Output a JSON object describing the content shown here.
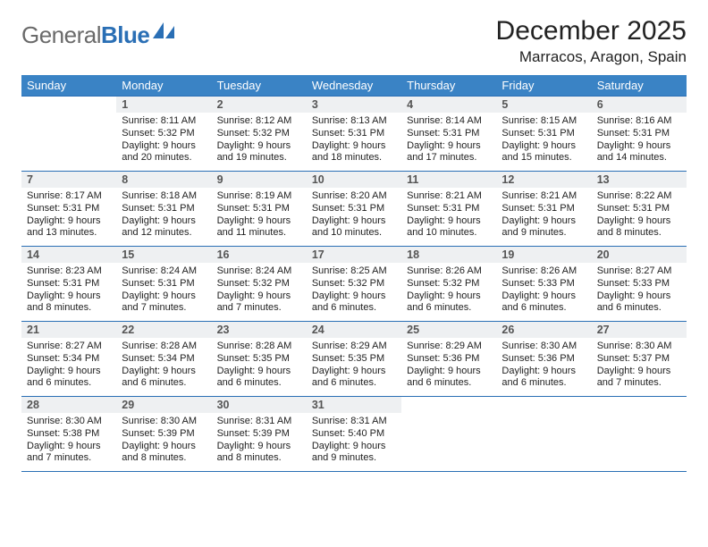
{
  "brand": {
    "word1": "General",
    "word2": "Blue",
    "accent_color": "#2a6fb5",
    "gray_color": "#6a6a6a"
  },
  "title": "December 2025",
  "location": "Marracos, Aragon, Spain",
  "header_bg": "#3a83c5",
  "rule_color": "#2a6fb5",
  "daynum_bg": "#eef0f2",
  "day_headers": [
    "Sunday",
    "Monday",
    "Tuesday",
    "Wednesday",
    "Thursday",
    "Friday",
    "Saturday"
  ],
  "weeks": [
    [
      null,
      {
        "n": "1",
        "sunrise": "8:11 AM",
        "sunset": "5:32 PM",
        "daylight": "9 hours and 20 minutes."
      },
      {
        "n": "2",
        "sunrise": "8:12 AM",
        "sunset": "5:32 PM",
        "daylight": "9 hours and 19 minutes."
      },
      {
        "n": "3",
        "sunrise": "8:13 AM",
        "sunset": "5:31 PM",
        "daylight": "9 hours and 18 minutes."
      },
      {
        "n": "4",
        "sunrise": "8:14 AM",
        "sunset": "5:31 PM",
        "daylight": "9 hours and 17 minutes."
      },
      {
        "n": "5",
        "sunrise": "8:15 AM",
        "sunset": "5:31 PM",
        "daylight": "9 hours and 15 minutes."
      },
      {
        "n": "6",
        "sunrise": "8:16 AM",
        "sunset": "5:31 PM",
        "daylight": "9 hours and 14 minutes."
      }
    ],
    [
      {
        "n": "7",
        "sunrise": "8:17 AM",
        "sunset": "5:31 PM",
        "daylight": "9 hours and 13 minutes."
      },
      {
        "n": "8",
        "sunrise": "8:18 AM",
        "sunset": "5:31 PM",
        "daylight": "9 hours and 12 minutes."
      },
      {
        "n": "9",
        "sunrise": "8:19 AM",
        "sunset": "5:31 PM",
        "daylight": "9 hours and 11 minutes."
      },
      {
        "n": "10",
        "sunrise": "8:20 AM",
        "sunset": "5:31 PM",
        "daylight": "9 hours and 10 minutes."
      },
      {
        "n": "11",
        "sunrise": "8:21 AM",
        "sunset": "5:31 PM",
        "daylight": "9 hours and 10 minutes."
      },
      {
        "n": "12",
        "sunrise": "8:21 AM",
        "sunset": "5:31 PM",
        "daylight": "9 hours and 9 minutes."
      },
      {
        "n": "13",
        "sunrise": "8:22 AM",
        "sunset": "5:31 PM",
        "daylight": "9 hours and 8 minutes."
      }
    ],
    [
      {
        "n": "14",
        "sunrise": "8:23 AM",
        "sunset": "5:31 PM",
        "daylight": "9 hours and 8 minutes."
      },
      {
        "n": "15",
        "sunrise": "8:24 AM",
        "sunset": "5:31 PM",
        "daylight": "9 hours and 7 minutes."
      },
      {
        "n": "16",
        "sunrise": "8:24 AM",
        "sunset": "5:32 PM",
        "daylight": "9 hours and 7 minutes."
      },
      {
        "n": "17",
        "sunrise": "8:25 AM",
        "sunset": "5:32 PM",
        "daylight": "9 hours and 6 minutes."
      },
      {
        "n": "18",
        "sunrise": "8:26 AM",
        "sunset": "5:32 PM",
        "daylight": "9 hours and 6 minutes."
      },
      {
        "n": "19",
        "sunrise": "8:26 AM",
        "sunset": "5:33 PM",
        "daylight": "9 hours and 6 minutes."
      },
      {
        "n": "20",
        "sunrise": "8:27 AM",
        "sunset": "5:33 PM",
        "daylight": "9 hours and 6 minutes."
      }
    ],
    [
      {
        "n": "21",
        "sunrise": "8:27 AM",
        "sunset": "5:34 PM",
        "daylight": "9 hours and 6 minutes."
      },
      {
        "n": "22",
        "sunrise": "8:28 AM",
        "sunset": "5:34 PM",
        "daylight": "9 hours and 6 minutes."
      },
      {
        "n": "23",
        "sunrise": "8:28 AM",
        "sunset": "5:35 PM",
        "daylight": "9 hours and 6 minutes."
      },
      {
        "n": "24",
        "sunrise": "8:29 AM",
        "sunset": "5:35 PM",
        "daylight": "9 hours and 6 minutes."
      },
      {
        "n": "25",
        "sunrise": "8:29 AM",
        "sunset": "5:36 PM",
        "daylight": "9 hours and 6 minutes."
      },
      {
        "n": "26",
        "sunrise": "8:30 AM",
        "sunset": "5:36 PM",
        "daylight": "9 hours and 6 minutes."
      },
      {
        "n": "27",
        "sunrise": "8:30 AM",
        "sunset": "5:37 PM",
        "daylight": "9 hours and 7 minutes."
      }
    ],
    [
      {
        "n": "28",
        "sunrise": "8:30 AM",
        "sunset": "5:38 PM",
        "daylight": "9 hours and 7 minutes."
      },
      {
        "n": "29",
        "sunrise": "8:30 AM",
        "sunset": "5:39 PM",
        "daylight": "9 hours and 8 minutes."
      },
      {
        "n": "30",
        "sunrise": "8:31 AM",
        "sunset": "5:39 PM",
        "daylight": "9 hours and 8 minutes."
      },
      {
        "n": "31",
        "sunrise": "8:31 AM",
        "sunset": "5:40 PM",
        "daylight": "9 hours and 9 minutes."
      },
      null,
      null,
      null
    ]
  ],
  "labels": {
    "sunrise": "Sunrise:",
    "sunset": "Sunset:",
    "daylight": "Daylight:"
  }
}
